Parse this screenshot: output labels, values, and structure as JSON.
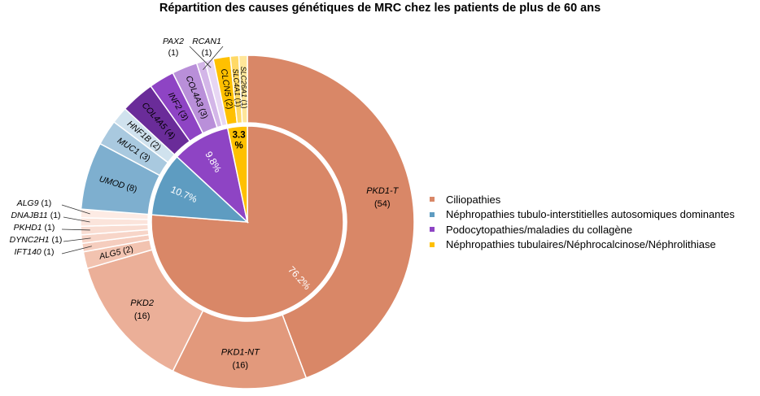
{
  "chart_data": {
    "type": "pie",
    "title": "Répartition des causes génétiques de MRC chez les patients de plus de 60 ans",
    "colors": {
      "Ciliopathies": "#D98767",
      "Néphropathies tubulo-interstitielles autosomiques dominantes": "#5E9CC1",
      "Podocytopathies/maladies du collagène": "#8E44C4",
      "Néphropathies tubulaires/Néphrocalcinose/Néphrolithiase": "#FFC000"
    },
    "inner": [
      {
        "category": "Ciliopathies",
        "label": "76.2%",
        "value": 76.2
      },
      {
        "category": "Néphropathies tubulo-interstitielles autosomiques dominantes",
        "label": "10.7%",
        "value": 10.7
      },
      {
        "category": "Podocytopathies/maladies du collagène",
        "label": "9.8%",
        "value": 9.8
      },
      {
        "category": "Néphropathies tubulaires/Néphrocalcinose/Néphrolithiase",
        "label": "3.3%",
        "value": 3.3
      }
    ],
    "outer": [
      {
        "gene": "PKD1-T",
        "count": 54,
        "label": "(54)",
        "category": "Ciliopathies",
        "color": "#D98767"
      },
      {
        "gene": "PKD1-NT",
        "count": 16,
        "label": "(16)",
        "category": "Ciliopathies",
        "color": "#E2997C"
      },
      {
        "gene": "PKD2",
        "count": 16,
        "label": "(16)",
        "category": "Ciliopathies",
        "color": "#EBAF98"
      },
      {
        "gene": "ALG5",
        "count": 2,
        "label": "(2)",
        "category": "Ciliopathies",
        "color": "#F2C3B0"
      },
      {
        "gene": "IFT140",
        "count": 1,
        "label": "(1)",
        "category": "Ciliopathies",
        "color": "#F5CDBE"
      },
      {
        "gene": "DYNC2H1",
        "count": 1,
        "label": "(1)",
        "category": "Ciliopathies",
        "color": "#F7D5C8"
      },
      {
        "gene": "PKHD1",
        "count": 1,
        "label": "(1)",
        "category": "Ciliopathies",
        "color": "#F9DDD2"
      },
      {
        "gene": "DNAJB11",
        "count": 1,
        "label": "(1)",
        "category": "Ciliopathies",
        "color": "#FBE4DB"
      },
      {
        "gene": "ALG9",
        "count": 1,
        "label": "(1)",
        "category": "Ciliopathies",
        "color": "#FDEBE4"
      },
      {
        "gene": "UMOD",
        "count": 8,
        "label": "(8)",
        "category": "Néphropathies tubulo-interstitielles autosomiques dominantes",
        "color": "#7EAFCF"
      },
      {
        "gene": "MUC1",
        "count": 3,
        "label": "(3)",
        "category": "Néphropathies tubulo-interstitielles autosomiques dominantes",
        "color": "#A9C9DF"
      },
      {
        "gene": "HNF1B",
        "count": 2,
        "label": "(2)",
        "category": "Néphropathies tubulo-interstitielles autosomiques dominantes",
        "color": "#D0E2EE"
      },
      {
        "gene": "COL4A5",
        "count": 4,
        "label": "(4)",
        "category": "Podocytopathies/maladies du collagène",
        "color": "#6A2C99"
      },
      {
        "gene": "INF2",
        "count": 3,
        "label": "(3)",
        "category": "Podocytopathies/maladies du collagène",
        "color": "#8E44C4"
      },
      {
        "gene": "COL4A3",
        "count": 3,
        "label": "(3)",
        "category": "Podocytopathies/maladies du collagène",
        "color": "#B98FD9"
      },
      {
        "gene": "RCAN1",
        "count": 1,
        "label": "(1)",
        "category": "Podocytopathies/maladies du collagène",
        "color": "#D3B6E8"
      },
      {
        "gene": "PAX2",
        "count": 1,
        "label": "(1)",
        "category": "Podocytopathies/maladies du collagène",
        "color": "#E7D6F3"
      },
      {
        "gene": "CLCN5",
        "count": 2,
        "label": "(2)",
        "category": "Néphropathies tubulaires/Néphrocalcinose/Néphrolithiase",
        "color": "#FFC000"
      },
      {
        "gene": "SLC4A1",
        "count": 1,
        "label": "(1)",
        "category": "Néphropathies tubulaires/Néphrocalcinose/Néphrolithiase",
        "color": "#FFD966"
      },
      {
        "gene": "SLC26A1",
        "count": 1,
        "label": "(1)",
        "category": "Néphropathies tubulaires/Néphrocalcinose/Néphrolithiase",
        "color": "#FFE699"
      }
    ],
    "legend": [
      "Ciliopathies",
      "Néphropathies tubulo-interstitielles autosomiques dominantes",
      "Podocytopathies/maladies du collagène",
      "Néphropathies tubulaires/Néphrocalcinose/Néphrolithiase"
    ],
    "legend_placement": "right",
    "start": "top, clockwise"
  }
}
